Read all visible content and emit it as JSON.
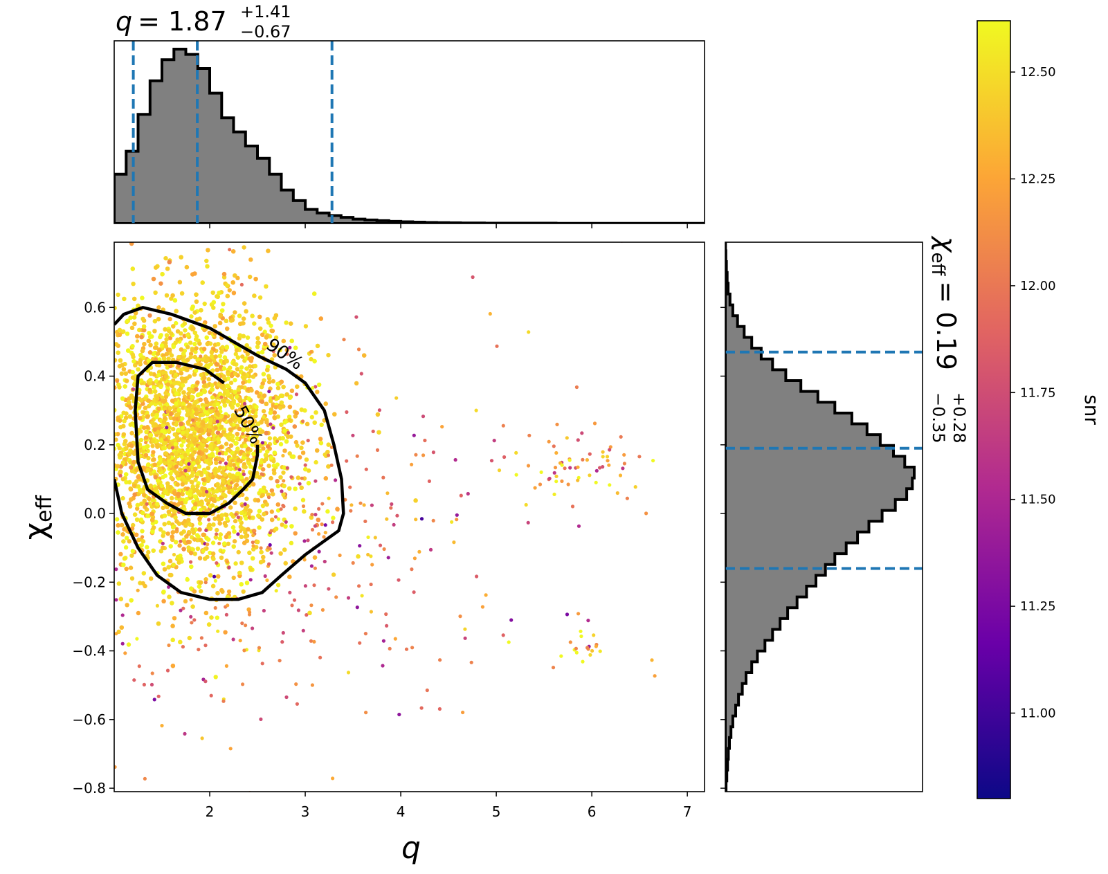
{
  "colors": {
    "hist_fill": "#808080",
    "hist_edge": "#000000",
    "quantile_lines": "#1f77b4",
    "contours": "#000000",
    "colormap": [
      "#0d0887",
      "#6a00a8",
      "#b12a90",
      "#e16462",
      "#fca636",
      "#f0f921"
    ]
  },
  "titles": {
    "q_symbol": "q",
    "q_value": "= 1.87",
    "q_plus": "+1.41",
    "q_minus": "−0.67",
    "chi_symbol": "χ",
    "chi_sub": "eff",
    "chi_value": "= 0.19",
    "chi_plus": "+0.28",
    "chi_minus": "−0.35"
  },
  "chart_data": [
    {
      "type": "scatter",
      "xlabel": "q",
      "ylabel": "χ_eff",
      "ylabel_main": "χ",
      "ylabel_sub": "eff",
      "xlim": [
        1.0,
        7.18
      ],
      "ylim": [
        -0.81,
        0.79
      ],
      "x_ticks": [
        2,
        3,
        4,
        5,
        6,
        7
      ],
      "x_tick_labels": [
        "2",
        "3",
        "4",
        "5",
        "6",
        "7"
      ],
      "y_ticks": [
        -0.8,
        -0.6,
        -0.4,
        -0.2,
        0.0,
        0.2,
        0.4,
        0.6
      ],
      "y_tick_labels": [
        "−0.8",
        "−0.6",
        "−0.4",
        "−0.2",
        "0.0",
        "0.2",
        "0.4",
        "0.6"
      ],
      "color_by": "snr",
      "sample_clusters": [
        {
          "q_center": 1.8,
          "chi_center": 0.22,
          "q_spread": 0.55,
          "chi_spread": 0.2,
          "snr_mean": 12.45,
          "weight": 0.9
        },
        {
          "q_center": 2.7,
          "chi_center": -0.05,
          "q_spread": 1.2,
          "chi_spread": 0.3,
          "snr_mean": 12.0,
          "weight": 0.08
        },
        {
          "q_center": 5.8,
          "chi_center": 0.15,
          "q_spread": 0.35,
          "chi_spread": 0.05,
          "snr_mean": 12.3,
          "weight": 0.012
        },
        {
          "q_center": 5.9,
          "chi_center": -0.39,
          "q_spread": 0.2,
          "chi_spread": 0.03,
          "snr_mean": 12.5,
          "weight": 0.003
        }
      ],
      "contours": [
        {
          "label": "90%",
          "points": [
            [
              1.0,
              0.55
            ],
            [
              1.1,
              0.58
            ],
            [
              1.3,
              0.6
            ],
            [
              1.6,
              0.58
            ],
            [
              2.0,
              0.54
            ],
            [
              2.25,
              0.5
            ],
            [
              2.5,
              0.46
            ],
            [
              2.8,
              0.42
            ],
            [
              3.0,
              0.38
            ],
            [
              3.2,
              0.3
            ],
            [
              3.3,
              0.2
            ],
            [
              3.38,
              0.1
            ],
            [
              3.4,
              0.0
            ],
            [
              3.35,
              -0.05
            ],
            [
              3.2,
              -0.08
            ],
            [
              3.0,
              -0.12
            ],
            [
              2.75,
              -0.18
            ],
            [
              2.55,
              -0.23
            ],
            [
              2.3,
              -0.25
            ],
            [
              2.0,
              -0.25
            ],
            [
              1.7,
              -0.23
            ],
            [
              1.45,
              -0.18
            ],
            [
              1.25,
              -0.1
            ],
            [
              1.08,
              0.0
            ],
            [
              1.0,
              0.1
            ]
          ]
        },
        {
          "label": "50%",
          "points": [
            [
              2.15,
              0.38
            ],
            [
              1.95,
              0.42
            ],
            [
              1.65,
              0.44
            ],
            [
              1.4,
              0.44
            ],
            [
              1.25,
              0.4
            ],
            [
              1.22,
              0.3
            ],
            [
              1.25,
              0.15
            ],
            [
              1.35,
              0.07
            ],
            [
              1.55,
              0.03
            ],
            [
              1.75,
              0.0
            ],
            [
              2.0,
              0.0
            ],
            [
              2.2,
              0.03
            ],
            [
              2.35,
              0.07
            ],
            [
              2.45,
              0.1
            ],
            [
              2.5,
              0.17
            ],
            [
              2.5,
              0.2
            ]
          ]
        }
      ]
    },
    {
      "type": "bar",
      "title": "q",
      "x_range": [
        1.0,
        7.18
      ],
      "bin_width": 0.125,
      "bin_start": 1.0,
      "densities": [
        0.28,
        0.41,
        0.62,
        0.81,
        0.93,
        0.99,
        0.96,
        0.88,
        0.74,
        0.6,
        0.52,
        0.44,
        0.37,
        0.28,
        0.19,
        0.13,
        0.08,
        0.06,
        0.045,
        0.035,
        0.025,
        0.02,
        0.016,
        0.012,
        0.01,
        0.008,
        0.006,
        0.005,
        0.004,
        0.003,
        0.003,
        0.002,
        0.002,
        0.002,
        0.002,
        0.002,
        0.002,
        0.001,
        0.001,
        0.001,
        0.001,
        0.001,
        0.001,
        0.001,
        0.001,
        0.001,
        0.001,
        0.001,
        0.001,
        0.001
      ],
      "quantiles": [
        1.2,
        1.87,
        3.28
      ]
    },
    {
      "type": "bar",
      "title": "χ_eff",
      "y_range": [
        -0.81,
        0.79
      ],
      "bin_width": 0.0315,
      "bin_start": -0.81,
      "densities": [
        0.004,
        0.008,
        0.012,
        0.016,
        0.022,
        0.03,
        0.04,
        0.055,
        0.07,
        0.09,
        0.11,
        0.14,
        0.17,
        0.21,
        0.25,
        0.29,
        0.33,
        0.38,
        0.43,
        0.48,
        0.53,
        0.58,
        0.64,
        0.7,
        0.76,
        0.83,
        0.9,
        0.96,
        0.99,
        1.0,
        0.95,
        0.89,
        0.82,
        0.75,
        0.67,
        0.58,
        0.49,
        0.4,
        0.32,
        0.25,
        0.19,
        0.14,
        0.1,
        0.065,
        0.04,
        0.025,
        0.015,
        0.01,
        0.006,
        0.003,
        0.001
      ],
      "quantiles": [
        -0.16,
        0.19,
        0.47
      ]
    },
    {
      "type": "heatmap",
      "label": "snr",
      "range": [
        10.8,
        12.62
      ],
      "ticks": [
        11.0,
        11.25,
        11.5,
        11.75,
        12.0,
        12.25,
        12.5
      ],
      "tick_labels": [
        "11.00",
        "11.25",
        "11.50",
        "11.75",
        "12.00",
        "12.25",
        "12.50"
      ]
    }
  ]
}
